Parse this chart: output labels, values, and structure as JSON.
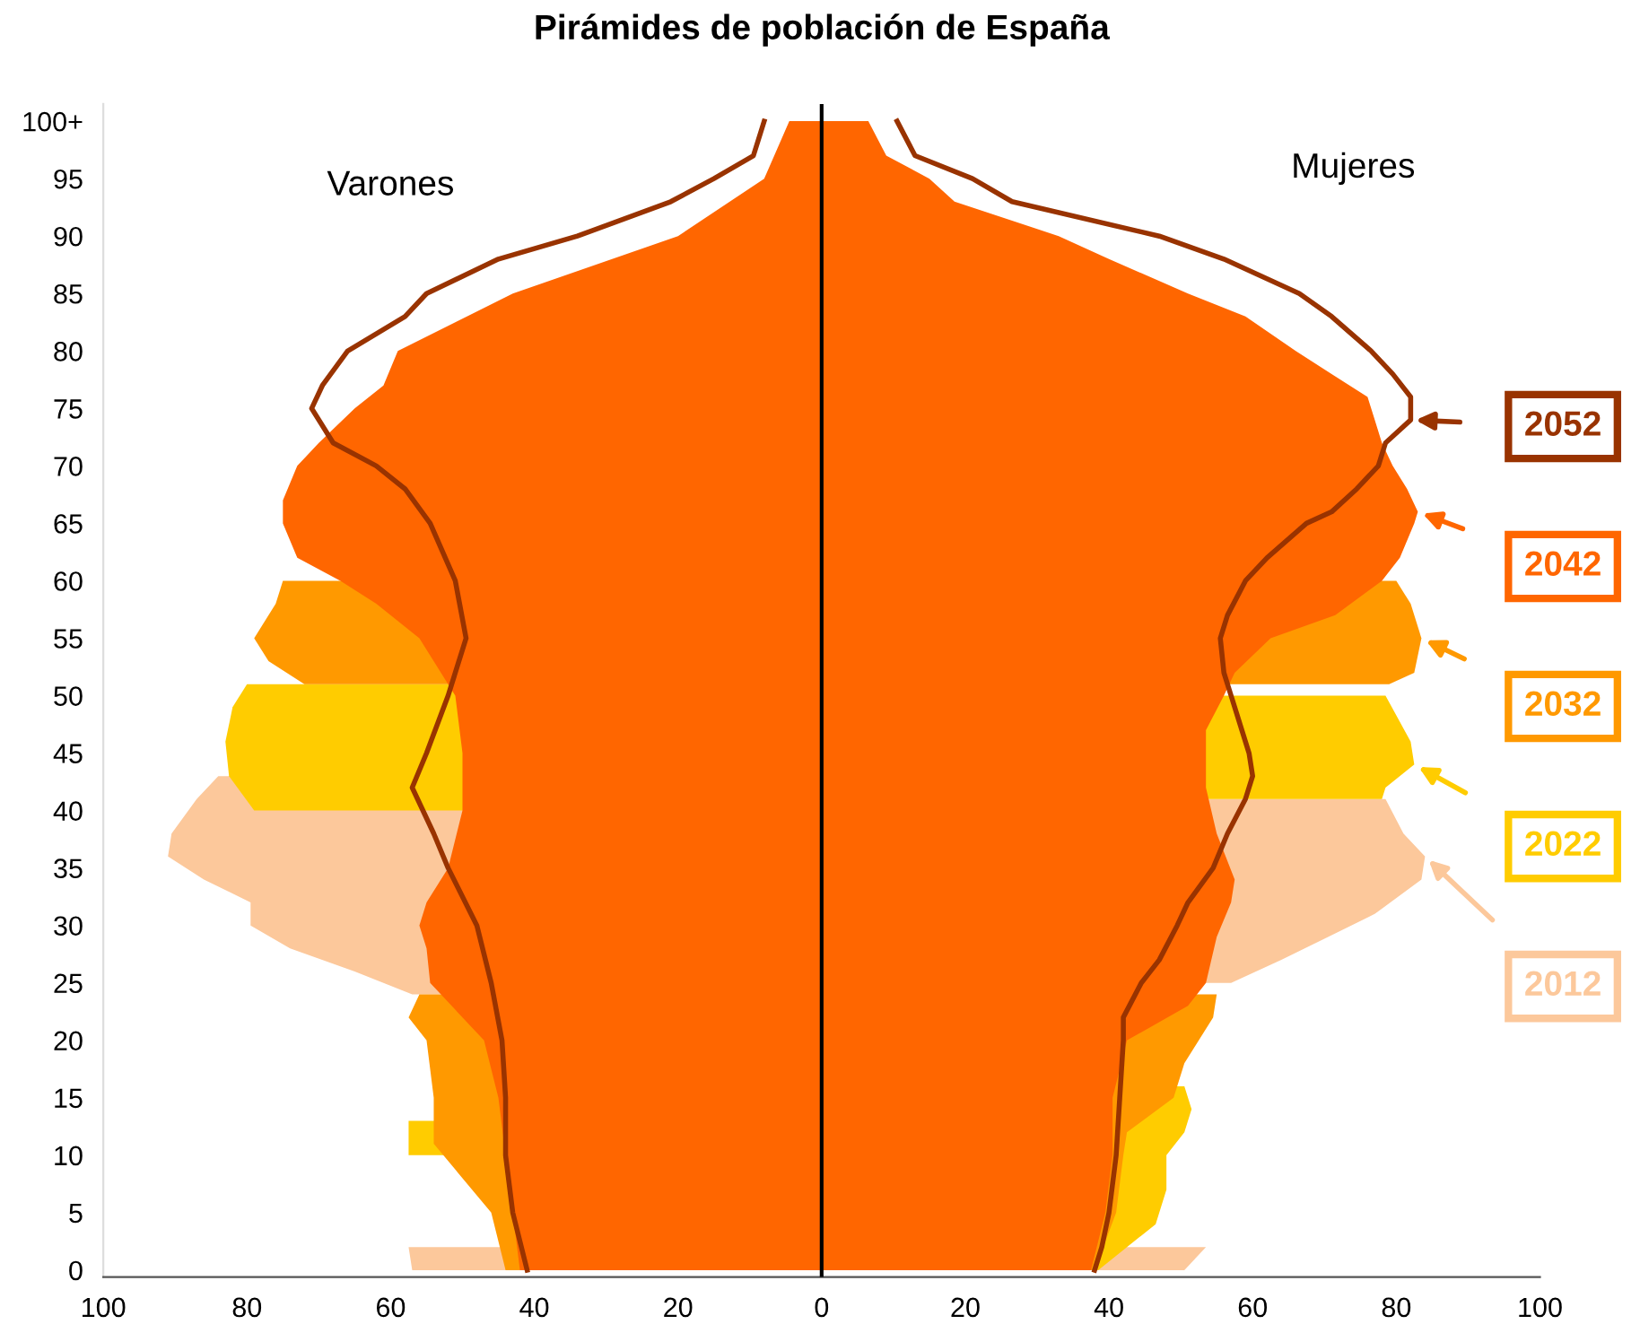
{
  "chart_data": {
    "type": "area",
    "orientation": "horizontal",
    "title": "Pirámides de población de España",
    "annotations": [
      "Varones",
      "Mujeres"
    ],
    "xlim": [
      -100,
      100
    ],
    "ylim": [
      -0.6,
      101.5
    ],
    "xticks": [
      {
        "value": -100,
        "label": "100"
      },
      {
        "value": -80,
        "label": "80"
      },
      {
        "value": -60,
        "label": "60"
      },
      {
        "value": -40,
        "label": "40"
      },
      {
        "value": -20,
        "label": "20"
      },
      0,
      20,
      40,
      60,
      80,
      100
    ],
    "yticks": [
      0,
      5,
      10,
      15,
      20,
      25,
      30,
      35,
      40,
      45,
      50,
      55,
      60,
      65,
      70,
      75,
      80,
      85,
      90,
      95,
      {
        "value": 100,
        "label": "100+"
      }
    ],
    "grid": false,
    "legend": "right",
    "ref_lines": [
      {
        "axis": "x",
        "value": 0,
        "color": "#000000"
      }
    ],
    "series": [
      {
        "color": "#fcc89b",
        "x": [
          0,
          2,
          4,
          7,
          10,
          15,
          20,
          24,
          26,
          28,
          30,
          32,
          34,
          36,
          38,
          41,
          43
        ],
        "values": [
          -57,
          -57.5,
          null,
          null,
          null,
          null,
          null,
          -57,
          -65,
          -74,
          -79.5,
          -79.5,
          -86,
          -91,
          -90.5,
          -87,
          -84
        ]
      },
      {
        "name": "2012",
        "color": "#fcc89b",
        "x": [
          0,
          2,
          4,
          7,
          10,
          15,
          20,
          24,
          25,
          27,
          29,
          31,
          34,
          36,
          38,
          41
        ],
        "values": [
          50.5,
          53.5,
          null,
          null,
          null,
          null,
          null,
          null,
          57,
          64,
          70.5,
          77,
          83.5,
          84,
          81,
          78.5
        ]
      },
      {
        "color": "#ffcc00",
        "x": [
          10,
          13,
          15,
          20,
          25,
          30,
          35,
          40,
          43,
          46,
          49,
          51
        ],
        "values": [
          -57.5,
          -57.5,
          null,
          null,
          null,
          null,
          null,
          -79,
          -82.5,
          -83,
          -82,
          -80
        ]
      },
      {
        "name": "2022",
        "color": "#ffcc00",
        "x": [
          0,
          4,
          7,
          10,
          12,
          14,
          16,
          20,
          25,
          30,
          35,
          38,
          41,
          42,
          44,
          46,
          50
        ],
        "values": [
          38.5,
          46.5,
          48,
          48,
          50.5,
          51.5,
          50.5,
          null,
          null,
          null,
          null,
          null,
          78,
          78.5,
          82.5,
          82,
          78.5
        ]
      },
      {
        "color": "#ff9900",
        "x": [
          0,
          5,
          11,
          15,
          20,
          22,
          24,
          28,
          32,
          36,
          40,
          45,
          51,
          53,
          55,
          58,
          60
        ],
        "values": [
          -44,
          -46,
          -54,
          -54,
          -55,
          -57.5,
          -56,
          null,
          null,
          null,
          null,
          null,
          -72,
          -77,
          -79,
          -76,
          -75
        ]
      },
      {
        "name": "2032",
        "color": "#ff9900",
        "x": [
          0,
          5,
          10,
          12,
          15,
          18,
          20,
          22,
          24,
          28,
          32,
          36,
          40,
          45,
          48,
          51,
          52,
          55,
          58,
          60
        ],
        "values": [
          38,
          41,
          42,
          42.5,
          49,
          50.5,
          52.5,
          54.5,
          55,
          null,
          null,
          null,
          null,
          null,
          null,
          79,
          82.5,
          83.5,
          82,
          80
        ]
      },
      {
        "color": "#ff6600",
        "x": [
          0,
          5,
          10,
          15,
          20,
          22,
          24,
          25,
          28,
          30,
          32,
          35,
          40,
          45,
          50,
          55,
          58,
          60,
          62,
          65,
          67,
          70,
          72,
          75,
          77,
          80,
          85,
          90,
          95,
          100
        ],
        "values": [
          -42,
          -43,
          -44,
          -45,
          -47,
          -50,
          -53,
          -54.5,
          -55,
          -56,
          -55,
          -52,
          -50,
          -50,
          -51,
          -56,
          -62,
          -67,
          -73,
          -75,
          -75,
          -73,
          -70,
          -65,
          -61,
          -59,
          -43,
          -20,
          -8,
          -4.5
        ]
      },
      {
        "name": "2042",
        "color": "#ff6600",
        "x": [
          0,
          5,
          10,
          15,
          20,
          23,
          25,
          29,
          32,
          34,
          38,
          42,
          47,
          50,
          52,
          55,
          57,
          60,
          62,
          65,
          66,
          68,
          70,
          72,
          74,
          76,
          78,
          80,
          83,
          85,
          88,
          90,
          93,
          95,
          97,
          100
        ],
        "values": [
          37.5,
          39.5,
          40.5,
          40.5,
          42.5,
          51,
          53.5,
          55,
          57,
          57.5,
          55,
          53.5,
          53.5,
          56,
          57.5,
          62.5,
          71.5,
          78,
          80.5,
          82.5,
          83,
          81.5,
          79.5,
          78,
          77,
          76,
          71,
          66,
          59,
          51,
          40,
          33,
          18.5,
          15,
          9,
          6.5
        ]
      },
      {
        "type": "line",
        "color": "#993300",
        "x": [
          0,
          5,
          10,
          15,
          20,
          25,
          30,
          35,
          38,
          42,
          45,
          50,
          55,
          60,
          65,
          68,
          70,
          72,
          75,
          77,
          80,
          83,
          85,
          88,
          90,
          93,
          95,
          97,
          100
        ],
        "values": [
          -41,
          -43,
          -44,
          -44,
          -44.5,
          -46,
          -48,
          -52,
          -54,
          -57,
          -55,
          -52,
          -49.5,
          -51,
          -54.5,
          -58,
          -62,
          -68,
          -71,
          -69.5,
          -66,
          -58,
          -55,
          -45,
          -34,
          -21,
          -15,
          -9.5,
          -8
        ]
      },
      {
        "name": "2052",
        "type": "line",
        "color": "#993300",
        "x": [
          0,
          2,
          5,
          10,
          15,
          20,
          22,
          25,
          27,
          30,
          32,
          35,
          38,
          41,
          43,
          45,
          48,
          50,
          52,
          55,
          57,
          60,
          62,
          65,
          66,
          68,
          70,
          72,
          74,
          76,
          78,
          80,
          83,
          85,
          88,
          90,
          93,
          95,
          97,
          100
        ],
        "values": [
          38,
          39,
          40,
          41,
          41.5,
          42,
          42,
          44.5,
          47,
          49.5,
          51,
          54.5,
          56.5,
          59,
          60,
          59.5,
          58,
          57,
          56,
          55.5,
          56.5,
          59,
          62,
          67.5,
          71,
          74.5,
          77.5,
          78.5,
          82,
          82,
          79.5,
          76.5,
          71,
          66.5,
          56,
          47,
          26.5,
          21,
          13,
          10.5
        ]
      }
    ]
  }
}
